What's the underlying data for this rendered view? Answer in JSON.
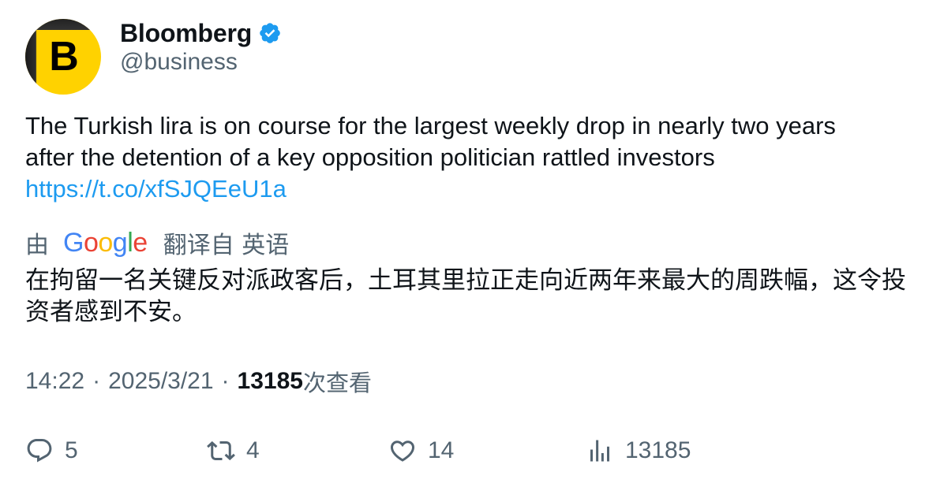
{
  "author": {
    "display_name": "Bloomberg",
    "handle": "@business",
    "avatar_letter": "B",
    "verified": true,
    "brand_color": "#ffd200"
  },
  "tweet": {
    "text_line1": "The Turkish lira is on course for the largest weekly drop in nearly two years",
    "text_line2": "after the detention of a key opposition politician rattled investors",
    "link": "https://t.co/xfSJQEeU1a"
  },
  "translation": {
    "prefix": "由",
    "provider": "Google",
    "suffix": "翻译自 英语",
    "text": "在拘留一名关键反对派政客后，土耳其里拉正走向近两年来最大的周跌幅，这令投资者感到不安。"
  },
  "meta": {
    "time": "14:22",
    "date": "2025/3/21",
    "views_count": "13185",
    "views_label": "次查看"
  },
  "actions": {
    "replies": "5",
    "retweets": "4",
    "likes": "14",
    "views": "13185"
  },
  "colors": {
    "text": "#0f1419",
    "secondary": "#536471",
    "link": "#1d9bf0",
    "verified": "#1d9bf0"
  }
}
